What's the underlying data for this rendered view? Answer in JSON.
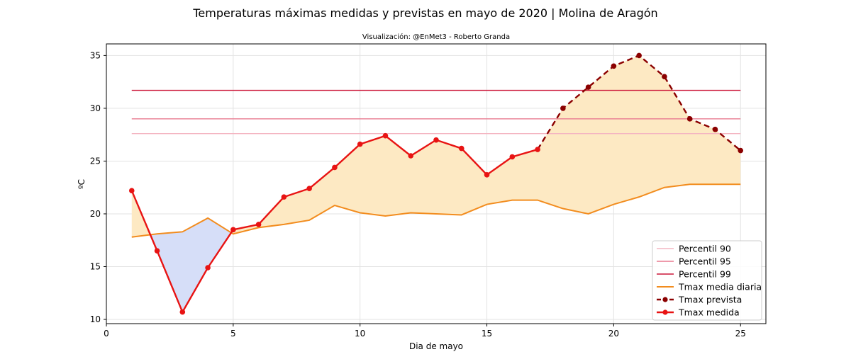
{
  "title": "Temperaturas máximas medidas y previstas en mayo de 2020 | Molina de Aragón",
  "subtitle": "Visualización: @EnMet3 - Roberto Granda",
  "chart_data": {
    "type": "line",
    "xlabel": "Dia de mayo",
    "ylabel": "ºC",
    "xlim": [
      0,
      26
    ],
    "ylim": [
      9.6,
      36.1
    ],
    "xticks": [
      0,
      5,
      10,
      15,
      20,
      25
    ],
    "yticks": [
      10,
      15,
      20,
      25,
      30,
      35
    ],
    "grid": true,
    "legend_position": "lower-right",
    "percentiles": [
      {
        "name": "Percentil 90",
        "value": 27.6,
        "color": "#f4b6c2"
      },
      {
        "name": "Percentil 95",
        "value": 29.0,
        "color": "#e8798f"
      },
      {
        "name": "Percentil 99",
        "value": 31.7,
        "color": "#cc1638"
      }
    ],
    "tmax_media": {
      "name": "Tmax media diaria",
      "color": "#f28c1e",
      "x": [
        1,
        2,
        3,
        4,
        5,
        6,
        7,
        8,
        9,
        10,
        11,
        12,
        13,
        14,
        15,
        16,
        17,
        18,
        19,
        20,
        21,
        22,
        23,
        24,
        25
      ],
      "y": [
        17.8,
        18.1,
        18.3,
        19.6,
        18.1,
        18.7,
        19.0,
        19.4,
        20.8,
        20.1,
        19.8,
        20.1,
        20.0,
        19.9,
        20.9,
        21.3,
        21.3,
        20.5,
        20.0,
        20.9,
        21.6,
        22.5,
        22.8,
        22.8,
        22.8
      ]
    },
    "tmax_medida": {
      "name": "Tmax medida",
      "color": "#e81313",
      "x": [
        1,
        2,
        3,
        4,
        5,
        6,
        7,
        8,
        9,
        10,
        11,
        12,
        13,
        14,
        15,
        16,
        17
      ],
      "y": [
        22.2,
        16.5,
        10.7,
        14.9,
        18.5,
        19.0,
        21.6,
        22.4,
        24.4,
        26.6,
        27.4,
        25.5,
        27.0,
        26.2,
        23.7,
        25.4,
        26.1
      ]
    },
    "tmax_prevista": {
      "name": "Tmax prevista",
      "color": "#8b0000",
      "x": [
        17,
        18,
        19,
        20,
        21,
        22,
        23,
        24,
        25
      ],
      "y": [
        26.1,
        30.0,
        32.0,
        34.0,
        35.0,
        33.0,
        29.0,
        28.0,
        26.0
      ]
    },
    "fill_above_color": "#fde9c3",
    "fill_below_color": "#d6def8"
  }
}
